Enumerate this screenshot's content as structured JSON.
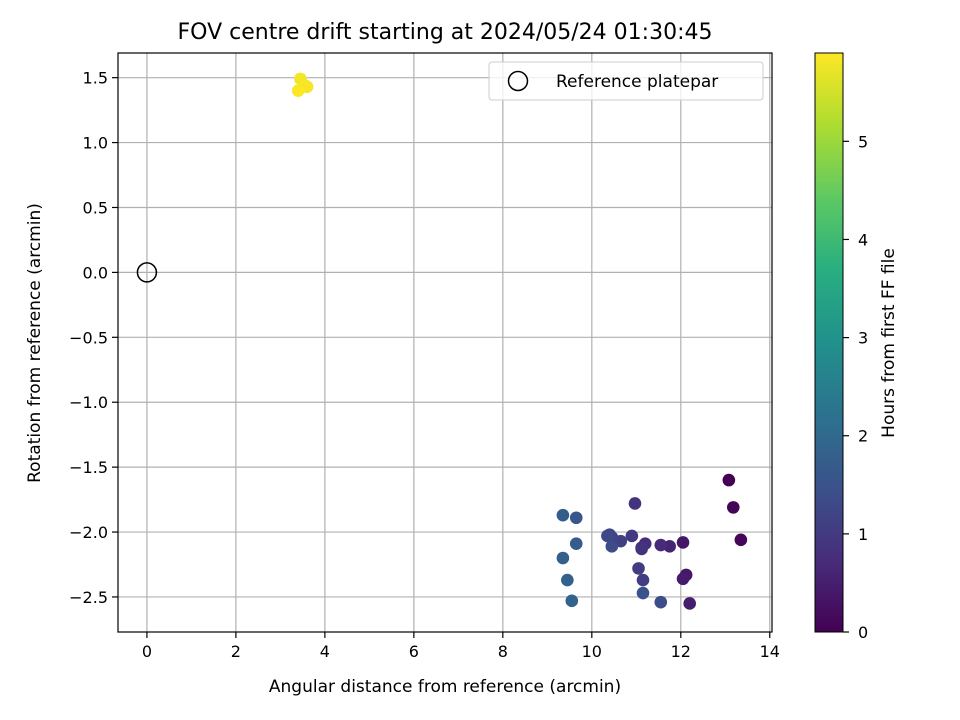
{
  "chart_data": {
    "type": "scatter",
    "title": "FOV centre drift starting at 2024/05/24 01:30:45",
    "xlabel": "Angular distance from reference (arcmin)",
    "ylabel": "Rotation from reference (arcmin)",
    "xlim": [
      -0.65,
      14.05
    ],
    "ylim": [
      -2.77,
      1.69
    ],
    "x_ticks": [
      0,
      2,
      4,
      6,
      8,
      10,
      12,
      14
    ],
    "y_ticks": [
      -2.5,
      -2.0,
      -1.5,
      -1.0,
      -0.5,
      0.0,
      0.5,
      1.0,
      1.5
    ],
    "y_tick_labels": [
      "−2.5",
      "−2.0",
      "−1.5",
      "−1.0",
      "−0.5",
      "0.0",
      "0.5",
      "1.0",
      "1.5"
    ],
    "grid": true,
    "legend_location": "top-right",
    "reference": {
      "name": "Reference platepar",
      "x": 0.0,
      "y": 0.0,
      "marker": "open-circle"
    },
    "colorbar": {
      "label": "Hours from first FF file",
      "colormap": "viridis",
      "range": [
        0,
        5.9
      ],
      "ticks": [
        0,
        1,
        2,
        3,
        4,
        5
      ]
    },
    "points": [
      {
        "x": 13.08,
        "y": -1.6,
        "h": 0.0
      },
      {
        "x": 13.18,
        "y": -1.81,
        "h": 0.05
      },
      {
        "x": 13.35,
        "y": -2.06,
        "h": 0.1
      },
      {
        "x": 12.05,
        "y": -2.08,
        "h": 0.35
      },
      {
        "x": 12.12,
        "y": -2.33,
        "h": 0.4
      },
      {
        "x": 12.05,
        "y": -2.36,
        "h": 0.45
      },
      {
        "x": 12.2,
        "y": -2.55,
        "h": 0.5
      },
      {
        "x": 11.75,
        "y": -2.11,
        "h": 0.6
      },
      {
        "x": 11.55,
        "y": -2.1,
        "h": 0.7
      },
      {
        "x": 11.2,
        "y": -2.09,
        "h": 0.75
      },
      {
        "x": 11.12,
        "y": -2.13,
        "h": 0.8
      },
      {
        "x": 10.97,
        "y": -1.78,
        "h": 0.9
      },
      {
        "x": 11.12,
        "y": -2.12,
        "h": 0.9
      },
      {
        "x": 10.9,
        "y": -2.03,
        "h": 1.0
      },
      {
        "x": 11.05,
        "y": -2.28,
        "h": 1.05
      },
      {
        "x": 11.15,
        "y": -2.37,
        "h": 1.1
      },
      {
        "x": 10.65,
        "y": -2.07,
        "h": 1.15
      },
      {
        "x": 10.45,
        "y": -2.04,
        "h": 1.2
      },
      {
        "x": 10.4,
        "y": -2.02,
        "h": 1.25
      },
      {
        "x": 10.35,
        "y": -2.03,
        "h": 1.3
      },
      {
        "x": 10.45,
        "y": -2.11,
        "h": 1.35
      },
      {
        "x": 11.55,
        "y": -2.54,
        "h": 1.4
      },
      {
        "x": 11.15,
        "y": -2.47,
        "h": 1.5
      },
      {
        "x": 9.65,
        "y": -1.89,
        "h": 1.6
      },
      {
        "x": 9.65,
        "y": -2.09,
        "h": 1.7
      },
      {
        "x": 9.35,
        "y": -1.87,
        "h": 1.75
      },
      {
        "x": 9.35,
        "y": -2.2,
        "h": 1.8
      },
      {
        "x": 9.45,
        "y": -2.37,
        "h": 1.85
      },
      {
        "x": 9.55,
        "y": -2.53,
        "h": 1.9
      },
      {
        "x": 3.45,
        "y": 1.49,
        "h": 5.8
      },
      {
        "x": 3.55,
        "y": 1.44,
        "h": 5.85
      },
      {
        "x": 3.6,
        "y": 1.43,
        "h": 5.85
      },
      {
        "x": 3.4,
        "y": 1.4,
        "h": 5.9
      }
    ]
  }
}
